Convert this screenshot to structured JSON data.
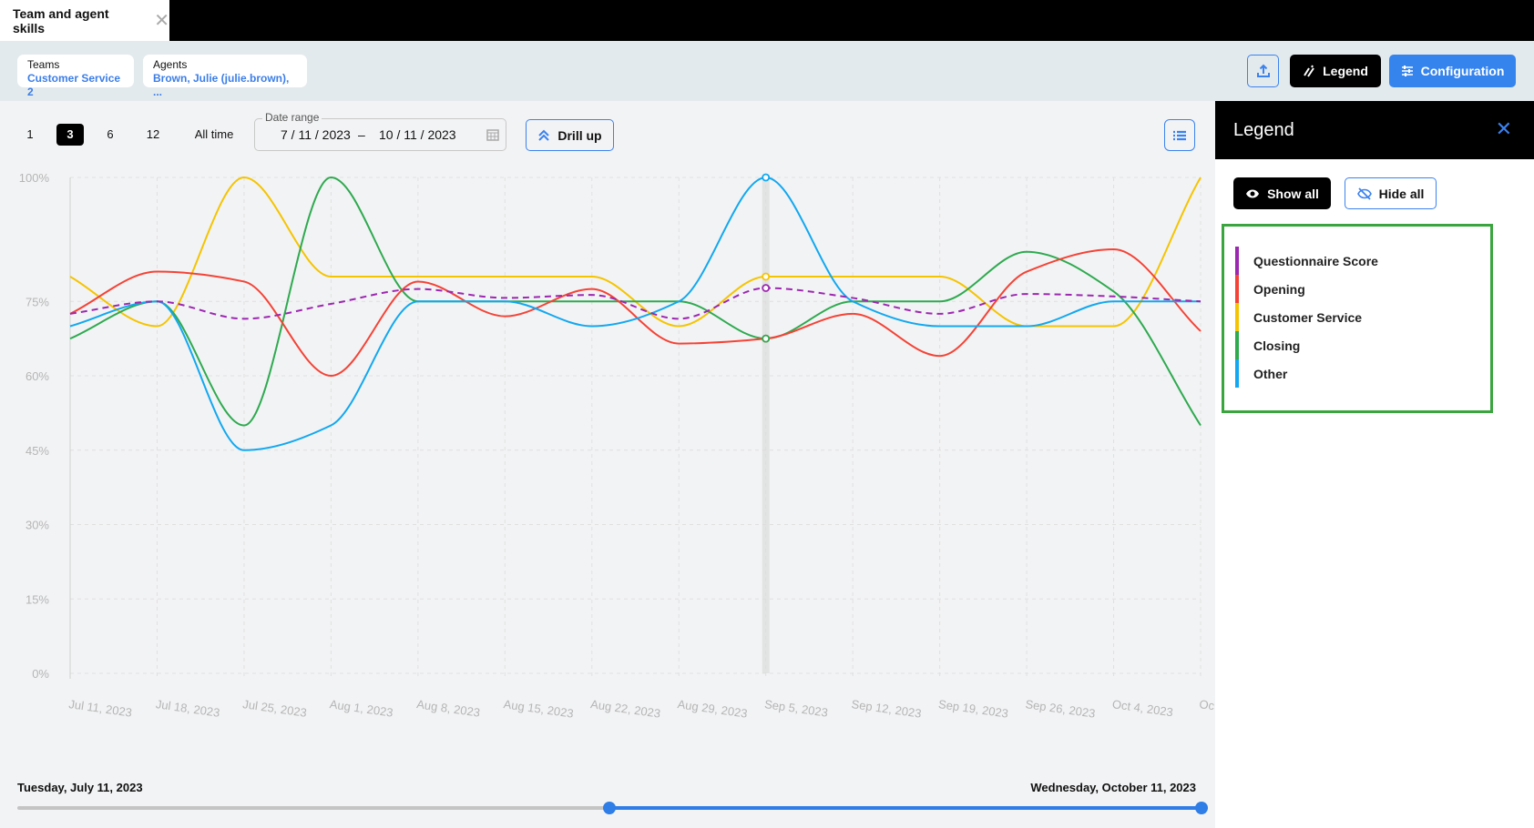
{
  "tab": {
    "title": "Team and agent skills",
    "close": "✕"
  },
  "filters": [
    {
      "label": "Teams",
      "value": "Customer Service 2"
    },
    {
      "label": "Agents",
      "value": "Brown, Julie (julie.brown), ..."
    }
  ],
  "toolbar": {
    "legend": "Legend",
    "configuration": "Configuration"
  },
  "ranges": [
    "1",
    "3",
    "6",
    "12",
    "All time"
  ],
  "selected_range": "3",
  "date_range": {
    "label": "Date range",
    "start": "7 / 11 / 2023",
    "sep": "–",
    "end": "10 / 11 / 2023"
  },
  "drill_up": "Drill up",
  "slider": {
    "start_label": "Tuesday, July 11, 2023",
    "end_label": "Wednesday, October 11, 2023",
    "range_start_fraction": 0.5,
    "range_end_fraction": 1.0
  },
  "legend_panel": {
    "title": "Legend",
    "show_all": "Show all",
    "hide_all": "Hide all",
    "items": [
      {
        "label": "Questionnaire Score",
        "color": "#9c27b0"
      },
      {
        "label": "Opening",
        "color": "#f44336"
      },
      {
        "label": "Customer Service",
        "color": "#f5c400"
      },
      {
        "label": "Closing",
        "color": "#2eaa4f"
      },
      {
        "label": "Other",
        "color": "#12a8ef"
      }
    ]
  },
  "chart_data": {
    "type": "line",
    "x": [
      "Jul 11, 2023",
      "Jul 18, 2023",
      "Jul 25, 2023",
      "Aug 1, 2023",
      "Aug 8, 2023",
      "Aug 15, 2023",
      "Aug 22, 2023",
      "Aug 29, 2023",
      "Sep 5, 2023",
      "Sep 12, 2023",
      "Sep 19, 2023",
      "Sep 26, 2023",
      "Oct 4, 2023",
      "Oc"
    ],
    "yticks": [
      "0%",
      "15%",
      "30%",
      "45%",
      "60%",
      "75%",
      "100%"
    ],
    "ytick_values": [
      0,
      15,
      30,
      45,
      60,
      75,
      100
    ],
    "ylim": [
      0,
      100
    ],
    "grid": true,
    "highlighted_x": "Sep 5, 2023",
    "series": [
      {
        "name": "Questionnaire Score",
        "color": "#9c27b0",
        "dashed": true,
        "values": [
          72.5,
          75,
          71.5,
          74.5,
          77.5,
          75.7,
          76.3,
          71.5,
          77.7,
          75.7,
          72.5,
          76.5,
          76,
          75
        ]
      },
      {
        "name": "Opening",
        "color": "#f44336",
        "values": [
          72.5,
          81,
          79,
          60,
          79,
          72,
          77.5,
          66.5,
          67.5,
          72.5,
          64,
          81,
          85.5,
          69
        ]
      },
      {
        "name": "Customer Service",
        "color": "#f5c400",
        "values": [
          80,
          70,
          100,
          80,
          80,
          80,
          80,
          70,
          80,
          80,
          80,
          70,
          70,
          100
        ]
      },
      {
        "name": "Closing",
        "color": "#2eaa4f",
        "values": [
          67.5,
          75,
          50,
          100,
          75,
          75,
          75,
          75,
          67.5,
          75,
          75,
          85,
          77,
          50
        ]
      },
      {
        "name": "Other",
        "color": "#12a8ef",
        "values": [
          70,
          75,
          45,
          50,
          75,
          75,
          70,
          75,
          100,
          75,
          70,
          70,
          75,
          75
        ]
      }
    ]
  }
}
